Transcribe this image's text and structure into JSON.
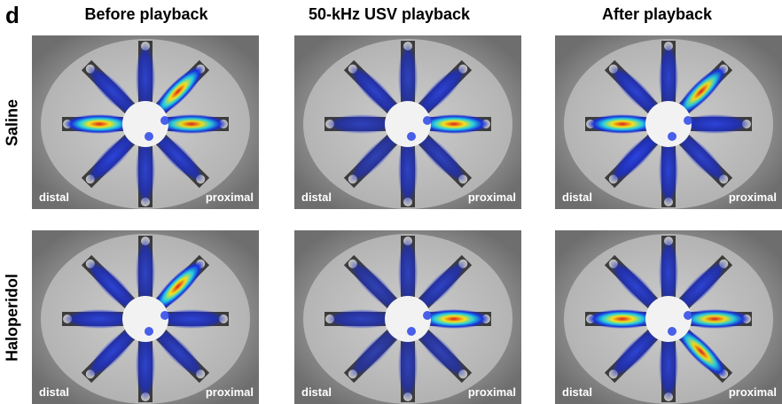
{
  "panel": {
    "letter": "d"
  },
  "columns": [
    {
      "title": "Before playback"
    },
    {
      "title": "50-kHz USV playback"
    },
    {
      "title": "After playback"
    }
  ],
  "rows": [
    {
      "label": "Saline"
    },
    {
      "label": "Haloperidol"
    }
  ],
  "tile_labels": {
    "left": "distal",
    "right": "proximal"
  }
}
